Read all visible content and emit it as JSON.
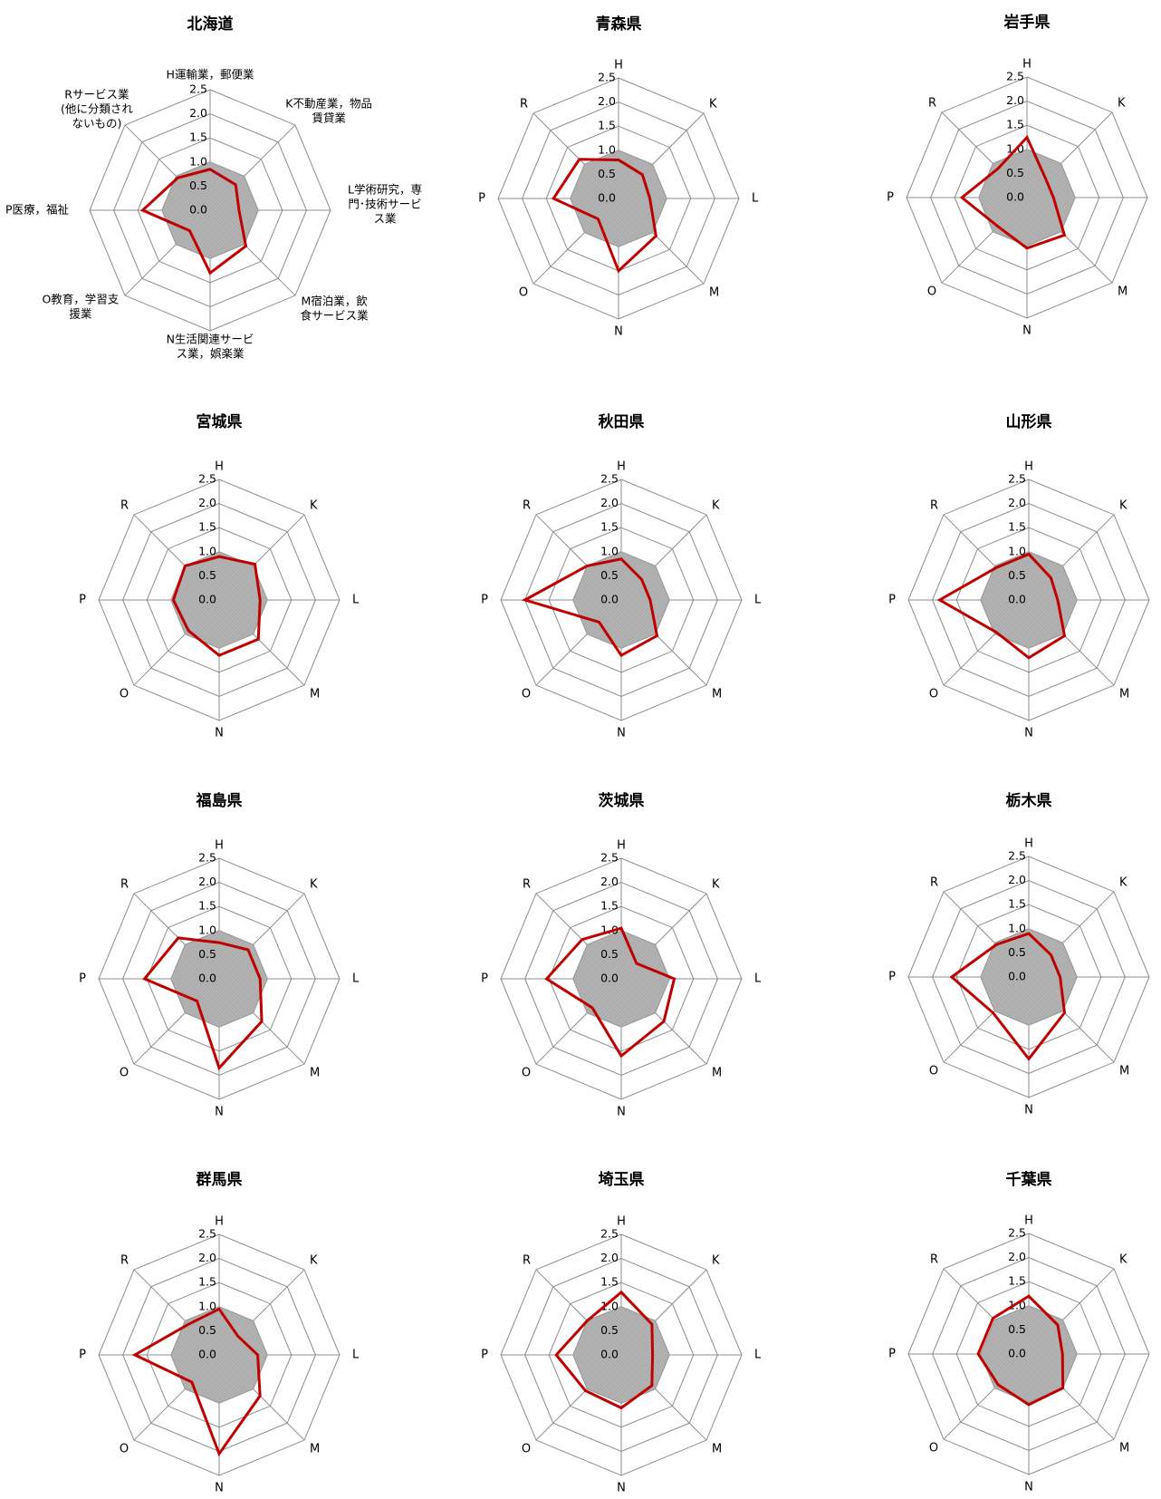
{
  "chart_data": [
    {
      "type": "radar",
      "title": "北海道",
      "axes": [
        "H運輸業，郵便業",
        "K不動産業，物品賃貸業",
        "L学術研究，専門･技術サービス業",
        "M宿泊業，飲食サービス業",
        "N生活関連サービス業，娯楽業",
        "O教育，学習支援業",
        "P医療，福祉",
        "Rサービス業(他に分類されないもの)"
      ],
      "ticks": [
        "0.0",
        "0.5",
        "1.0",
        "1.5",
        "2.0",
        "2.5"
      ],
      "rmax": 2.5,
      "reference": [
        1,
        1,
        1,
        1,
        1,
        1,
        1,
        1
      ],
      "values": [
        0.85,
        0.75,
        0.6,
        1.05,
        1.3,
        0.6,
        1.4,
        0.95
      ]
    },
    {
      "type": "radar",
      "title": "青森県",
      "axes": [
        "H",
        "K",
        "L",
        "M",
        "N",
        "O",
        "P",
        "R"
      ],
      "ticks": [
        "0.0",
        "0.5",
        "1.0",
        "1.5",
        "2.0",
        "2.5"
      ],
      "rmax": 2.5,
      "reference": [
        1,
        1,
        1,
        1,
        1,
        1,
        1,
        1
      ],
      "values": [
        0.8,
        0.7,
        0.65,
        1.1,
        1.5,
        0.6,
        1.35,
        1.15
      ]
    },
    {
      "type": "radar",
      "title": "岩手県",
      "axes": [
        "H",
        "K",
        "L",
        "M",
        "N",
        "O",
        "P",
        "R"
      ],
      "ticks": [
        "0.0",
        "0.5",
        "1.0",
        "1.5",
        "2.0",
        "2.5"
      ],
      "rmax": 2.5,
      "reference": [
        1,
        1,
        1,
        1,
        1,
        1,
        1,
        1
      ],
      "values": [
        1.25,
        0.55,
        0.55,
        1.1,
        1.05,
        0.85,
        1.35,
        0.85
      ]
    },
    {
      "type": "radar",
      "title": "宮城県",
      "axes": [
        "H",
        "K",
        "L",
        "M",
        "N",
        "O",
        "P",
        "R"
      ],
      "ticks": [
        "0.0",
        "0.5",
        "1.0",
        "1.5",
        "2.0",
        "2.5"
      ],
      "rmax": 2.5,
      "reference": [
        1,
        1,
        1,
        1,
        1,
        1,
        1,
        1
      ],
      "values": [
        0.9,
        1.05,
        0.85,
        1.15,
        1.15,
        0.9,
        0.95,
        1.0
      ]
    },
    {
      "type": "radar",
      "title": "秋田県",
      "axes": [
        "H",
        "K",
        "L",
        "M",
        "N",
        "O",
        "P",
        "R"
      ],
      "ticks": [
        "0.0",
        "0.5",
        "1.0",
        "1.5",
        "2.0",
        "2.5"
      ],
      "rmax": 2.5,
      "reference": [
        1,
        1,
        1,
        1,
        1,
        1,
        1,
        1
      ],
      "values": [
        0.85,
        0.6,
        0.6,
        1.05,
        1.15,
        0.65,
        2.0,
        1.0
      ]
    },
    {
      "type": "radar",
      "title": "山形県",
      "axes": [
        "H",
        "K",
        "L",
        "M",
        "N",
        "O",
        "P",
        "R"
      ],
      "ticks": [
        "0.0",
        "0.5",
        "1.0",
        "1.5",
        "2.0",
        "2.5"
      ],
      "rmax": 2.5,
      "reference": [
        1,
        1,
        1,
        1,
        1,
        1,
        1,
        1
      ],
      "values": [
        0.95,
        0.65,
        0.6,
        1.05,
        1.2,
        0.95,
        1.85,
        0.95
      ]
    },
    {
      "type": "radar",
      "title": "福島県",
      "axes": [
        "H",
        "K",
        "L",
        "M",
        "N",
        "O",
        "P",
        "R"
      ],
      "ticks": [
        "0.0",
        "0.5",
        "1.0",
        "1.5",
        "2.0",
        "2.5"
      ],
      "rmax": 2.5,
      "reference": [
        1,
        1,
        1,
        1,
        1,
        1,
        1,
        1
      ],
      "values": [
        0.75,
        0.85,
        0.85,
        1.25,
        1.85,
        0.65,
        1.55,
        1.2
      ]
    },
    {
      "type": "radar",
      "title": "茨城県",
      "axes": [
        "H",
        "K",
        "L",
        "M",
        "N",
        "O",
        "P",
        "R"
      ],
      "ticks": [
        "0.0",
        "0.5",
        "1.0",
        "1.5",
        "2.0",
        "2.5"
      ],
      "rmax": 2.5,
      "reference": [
        1,
        1,
        1,
        1,
        1,
        1,
        1,
        1
      ],
      "values": [
        1.05,
        0.45,
        1.1,
        1.25,
        1.6,
        0.85,
        1.55,
        1.15
      ]
    },
    {
      "type": "radar",
      "title": "栃木県",
      "axes": [
        "H",
        "K",
        "L",
        "M",
        "N",
        "O",
        "P",
        "R"
      ],
      "ticks": [
        "0.0",
        "0.5",
        "1.0",
        "1.5",
        "2.0",
        "2.5"
      ],
      "rmax": 2.5,
      "reference": [
        1,
        1,
        1,
        1,
        1,
        1,
        1,
        1
      ],
      "values": [
        0.9,
        0.65,
        0.65,
        1.05,
        1.7,
        1.05,
        1.6,
        0.95
      ]
    },
    {
      "type": "radar",
      "title": "群馬県",
      "axes": [
        "H",
        "K",
        "L",
        "M",
        "N",
        "O",
        "P",
        "R"
      ],
      "ticks": [
        "0.0",
        "0.5",
        "1.0",
        "1.5",
        "2.0",
        "2.5"
      ],
      "rmax": 2.5,
      "reference": [
        1,
        1,
        1,
        1,
        1,
        1,
        1,
        1
      ],
      "values": [
        0.95,
        0.55,
        0.8,
        1.2,
        2.05,
        0.8,
        1.75,
        0.9
      ]
    },
    {
      "type": "radar",
      "title": "埼玉県",
      "axes": [
        "H",
        "K",
        "L",
        "M",
        "N",
        "O",
        "P",
        "R"
      ],
      "ticks": [
        "0.0",
        "0.5",
        "1.0",
        "1.5",
        "2.0",
        "2.5"
      ],
      "rmax": 2.5,
      "reference": [
        1,
        1,
        1,
        1,
        1,
        1,
        1,
        1
      ],
      "values": [
        1.3,
        0.9,
        0.65,
        0.9,
        1.1,
        1.05,
        1.35,
        1.0
      ]
    },
    {
      "type": "radar",
      "title": "千葉県",
      "axes": [
        "H",
        "K",
        "L",
        "M",
        "N",
        "O",
        "P",
        "R"
      ],
      "ticks": [
        "0.0",
        "0.5",
        "1.0",
        "1.5",
        "2.0",
        "2.5"
      ],
      "rmax": 2.5,
      "reference": [
        1,
        1,
        1,
        1,
        1,
        1,
        1,
        1
      ],
      "values": [
        1.2,
        0.85,
        0.7,
        1.0,
        1.05,
        0.9,
        1.05,
        1.05
      ]
    }
  ],
  "colors": {
    "series": "#c00000",
    "reference_fill": "#b3b3b3",
    "grid": "#8c8c8c"
  }
}
